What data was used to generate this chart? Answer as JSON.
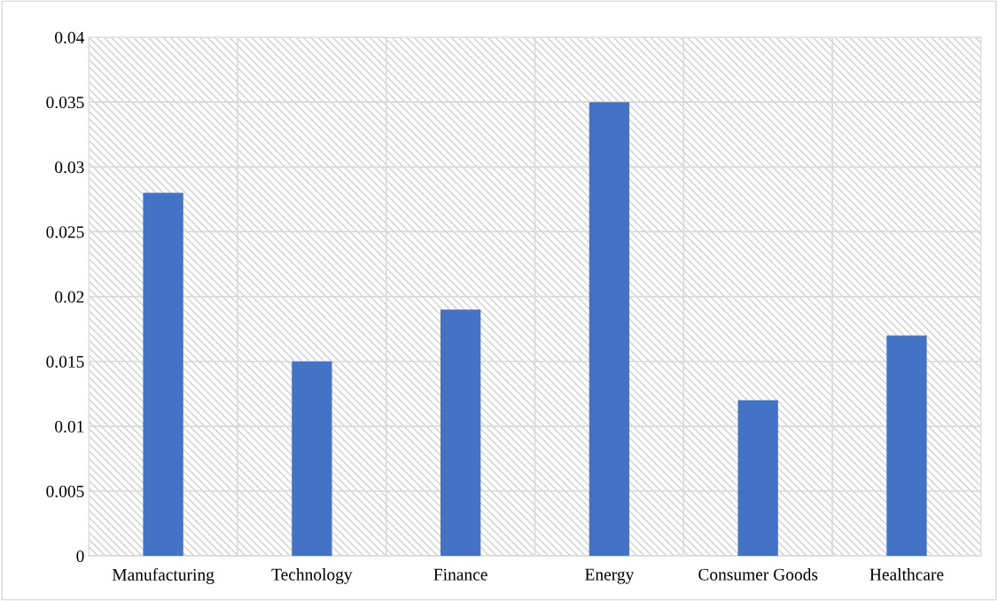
{
  "chart_data": {
    "type": "bar",
    "categories": [
      "Manufacturing",
      "Technology",
      "Finance",
      "Energy",
      "Consumer Goods",
      "Healthcare"
    ],
    "values": [
      0.028,
      0.015,
      0.019,
      0.035,
      0.012,
      0.017
    ],
    "color": "#4472c4",
    "ylim": [
      0,
      0.04
    ],
    "yticks": [
      0,
      0.005,
      0.01,
      0.015,
      0.02,
      0.025,
      0.03,
      0.035,
      0.04
    ],
    "grid": true
  }
}
